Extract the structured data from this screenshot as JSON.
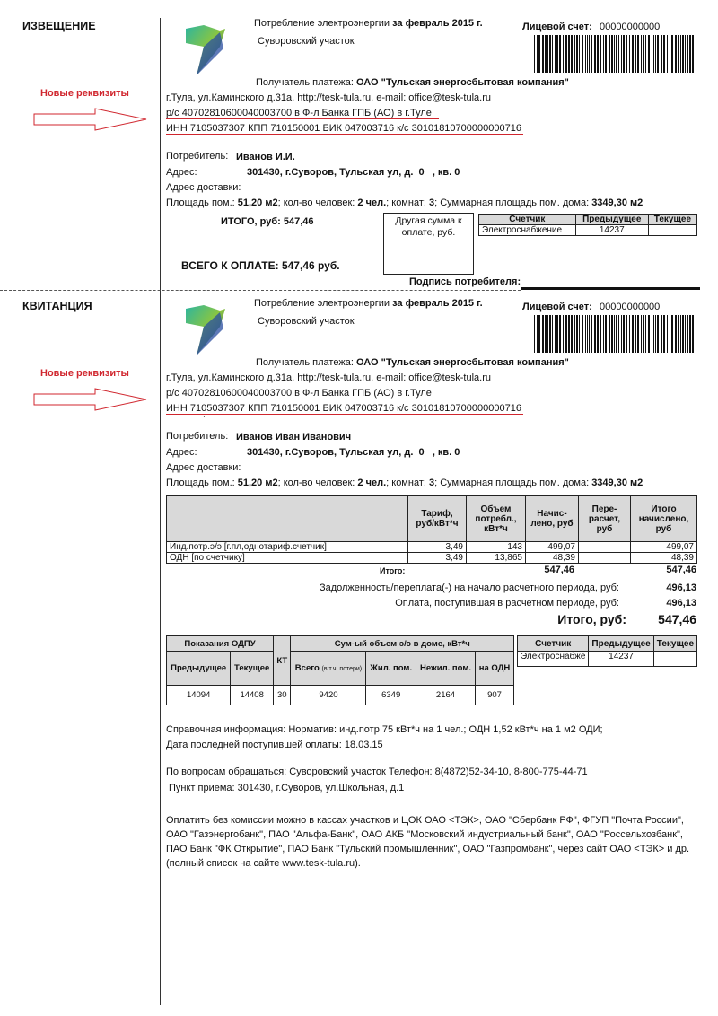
{
  "colors": {
    "accent_red": "#d0262e",
    "header_gray": "#d9d9d9"
  },
  "new_requisites_label": "Новые реквизиты",
  "notice": {
    "title": "ИЗВЕЩЕНИЕ",
    "period_prefix": "Потребление электроэнергии",
    "period": "за февраль 2015 г.",
    "district": "Суворовский участок",
    "account_label": "Лицевой счет:",
    "account_number": "00000000000",
    "payee_label": "Получатель платежа:",
    "payee": "ОАО \"Тульская энергосбытовая компания\"",
    "address_line": "г.Тула, ул.Каминского д.31а, http://tesk-tula.ru, e-mail: office@tesk-tula.ru",
    "bank_line": "р/с 40702810600040003700  в Ф-л Банка ГПБ (АО) в г.Туле",
    "ids_line": "ИНН 7105037307  КПП 710150001  БИК 047003716  к/с 30101810700000000716",
    "consumer_label": "Потребитель:",
    "consumer": "Иванов И.И.",
    "address_label": "Адрес:",
    "address": "301430, г.Суворов, Тульская ул, д.  0   , кв. 0",
    "delivery_label": "Адрес доставки:",
    "area_parts": [
      "Площадь пом.: ",
      "51,20 м2",
      "; кол-во человек: ",
      "2 чел.",
      "; комнат: ",
      "3",
      "; Суммарная площадь пом. дома: ",
      "3349,30 м2"
    ],
    "total_label": "ИТОГО, руб:",
    "total": "547,46",
    "other_sum_label": "Другая сумма к оплате, руб.",
    "meter_headers": [
      "Счетчик",
      "Предыдущее",
      "Текущее"
    ],
    "meter_row": [
      "Электроснабжение",
      "14237",
      ""
    ],
    "grand_total": "ВСЕГО К ОПЛАТЕ: 547,46 руб.",
    "signature_label": "Подпись потребителя:"
  },
  "receipt": {
    "title": "КВИТАНЦИЯ",
    "period_prefix": "Потребление электроэнергии",
    "period": "за февраль 2015 г.",
    "district": "Суворовский участок",
    "account_label": "Лицевой счет:",
    "account_number": "00000000000",
    "payee_label": "Получатель платежа:",
    "payee": "ОАО \"Тульская энергосбытовая компания\"",
    "address_line": "г.Тула, ул.Каминского д.31а, http://tesk-tula.ru, e-mail: office@tesk-tula.ru",
    "bank_line": "р/с 40702810600040003700  в Ф-л Банка ГПБ (АО) в г.Туле",
    "ids_line": "ИНН 7105037307  КПП 710150001  БИК 047003716  к/с 30101810700000000716",
    "consumer_label": "Потребитель:",
    "consumer": "Иванов Иван Иванович",
    "address_label": "Адрес:",
    "address": "301430, г.Суворов, Тульская ул, д.  0   , кв. 0",
    "delivery_label": "Адрес доставки:",
    "area_parts": [
      "Площадь пом.: ",
      "51,20 м2",
      "; кол-во человек: ",
      "2 чел.",
      "; комнат: ",
      "3",
      "; Суммарная площадь пом. дома: ",
      "3349,30 м2"
    ],
    "charges": {
      "headers": [
        "",
        "Тариф, руб/кВт*ч",
        "Объем потребл., кВт*ч",
        "Начис-лено, руб",
        "Пере-расчет, руб",
        "Итого начислено, руб"
      ],
      "rows": [
        [
          "Инд.потр.э/э [г.пл,однотариф.счетчик]",
          "3,49",
          "143",
          "499,07",
          "",
          "499,07"
        ],
        [
          "ОДН [по счетчику]",
          "3,49",
          "13,865",
          "48,39",
          "",
          "48,39"
        ]
      ],
      "total_label": "Итого:",
      "total_charged": "547,46",
      "total_final": "547,46"
    },
    "debt_label": "Задолженность/переплата(-) на начало расчетного периода, руб:",
    "debt": "496,13",
    "paid_label": "Оплата, поступившая в расчетном периоде, руб:",
    "paid": "496,13",
    "final_label": "Итого, руб:",
    "final": "547,46",
    "odpu": {
      "group1": "Показания ОДПУ",
      "kt": "КТ",
      "group2": "Сум-ый объем э/э в доме, кВт*ч",
      "sub": [
        "Предыдущее",
        "Текущее",
        "Всего",
        "(в т.ч. потери)",
        "Жил. пом.",
        "Нежил. пом.",
        "на ОДН"
      ],
      "row": [
        "14094",
        "14408",
        "30",
        "9420",
        "6349",
        "2164",
        "907"
      ]
    },
    "meter_headers": [
      "Счетчик",
      "Предыдущее",
      "Текущее"
    ],
    "meter_row": [
      "Электроснабже",
      "14237",
      ""
    ],
    "info": "Справочная информация:  Норматив: инд.потр 75 кВт*ч на 1 чел.; ОДН 1,52 кВт*ч на 1 м2 ОДИ;",
    "last_payment": "Дата последней поступившей оплаты:   18.03.15",
    "contacts": "По вопросам обращаться:  Суворовский участок Телефон:  8(4872)52-34-10, 8-800-775-44-71",
    "reception": "Пункт приема: 301430, г.Суворов, ул.Школьная, д.1",
    "payment_places": [
      "Оплатить без комиссии можно в кассах участков и ЦОК ОАО <ТЭК>, ОАО \"Сбербанк РФ\",  ФГУП \"Почта России\",",
      "ОАО \"Газэнергобанк\", ПАО \"Альфа-Банк\", ОАО АКБ \"Московский индустриальный банк\", ОАО \"Россельхозбанк\",",
      "ПАО Банк \"ФК Открытие\", ПАО Банк \"Тульский промышленник\", ОАО \"Газпромбанк\", через сайт ОАО <ТЭК> и др.",
      "(полный список на сайте www.tesk-tula.ru)."
    ]
  }
}
